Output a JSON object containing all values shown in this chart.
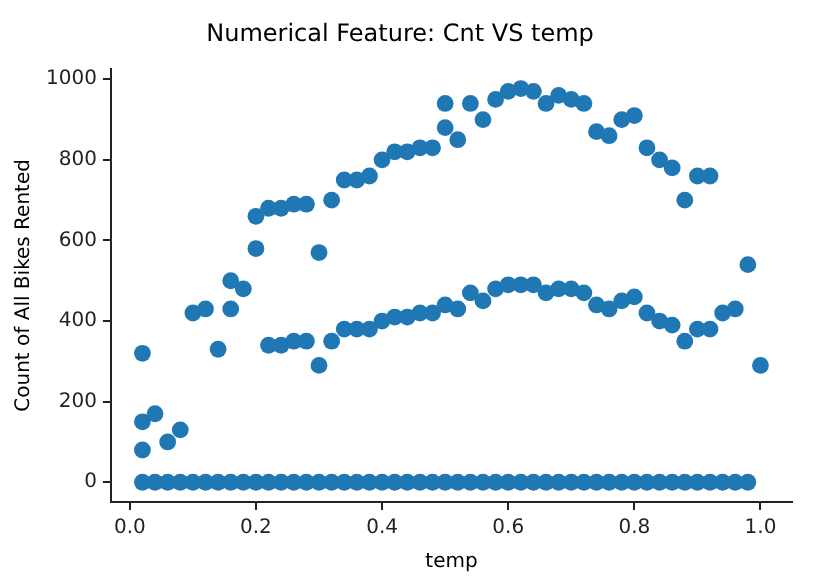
{
  "chart_data": {
    "type": "scatter",
    "title": "Numerical Feature: Cnt VS temp",
    "xlabel": "temp",
    "ylabel": "Count of All Bikes Rented",
    "x": [
      0.02,
      0.02,
      0.02,
      0.02,
      0.04,
      0.04,
      0.06,
      0.06,
      0.08,
      0.08,
      0.1,
      0.1,
      0.12,
      0.12,
      0.14,
      0.14,
      0.16,
      0.16,
      0.16,
      0.18,
      0.18,
      0.2,
      0.2,
      0.2,
      0.22,
      0.22,
      0.22,
      0.24,
      0.24,
      0.24,
      0.26,
      0.26,
      0.26,
      0.28,
      0.28,
      0.28,
      0.3,
      0.3,
      0.3,
      0.32,
      0.32,
      0.32,
      0.34,
      0.34,
      0.34,
      0.36,
      0.36,
      0.36,
      0.38,
      0.38,
      0.38,
      0.4,
      0.4,
      0.4,
      0.42,
      0.42,
      0.42,
      0.44,
      0.44,
      0.44,
      0.46,
      0.46,
      0.46,
      0.48,
      0.48,
      0.48,
      0.5,
      0.5,
      0.5,
      0.5,
      0.52,
      0.52,
      0.52,
      0.54,
      0.54,
      0.54,
      0.56,
      0.56,
      0.56,
      0.58,
      0.58,
      0.58,
      0.6,
      0.6,
      0.6,
      0.62,
      0.62,
      0.62,
      0.64,
      0.64,
      0.64,
      0.66,
      0.66,
      0.66,
      0.68,
      0.68,
      0.68,
      0.7,
      0.7,
      0.7,
      0.72,
      0.72,
      0.72,
      0.74,
      0.74,
      0.74,
      0.76,
      0.76,
      0.76,
      0.78,
      0.78,
      0.78,
      0.8,
      0.8,
      0.8,
      0.82,
      0.82,
      0.82,
      0.84,
      0.84,
      0.84,
      0.86,
      0.86,
      0.86,
      0.88,
      0.88,
      0.88,
      0.9,
      0.9,
      0.9,
      0.92,
      0.92,
      0.92,
      0.94,
      0.94,
      0.96,
      0.96,
      0.98,
      0.98,
      1.0
    ],
    "values": [
      320,
      150,
      80,
      0,
      170,
      0,
      100,
      0,
      130,
      0,
      420,
      0,
      430,
      0,
      330,
      0,
      500,
      430,
      0,
      480,
      0,
      660,
      580,
      0,
      680,
      340,
      0,
      680,
      340,
      0,
      690,
      350,
      0,
      690,
      350,
      0,
      570,
      290,
      0,
      700,
      350,
      0,
      750,
      380,
      0,
      750,
      380,
      0,
      760,
      380,
      0,
      800,
      400,
      0,
      820,
      410,
      0,
      820,
      410,
      0,
      830,
      420,
      0,
      830,
      420,
      0,
      940,
      880,
      440,
      0,
      850,
      430,
      0,
      940,
      470,
      0,
      900,
      450,
      0,
      950,
      480,
      0,
      970,
      490,
      0,
      977,
      490,
      0,
      970,
      490,
      0,
      940,
      470,
      0,
      960,
      480,
      0,
      950,
      480,
      0,
      940,
      470,
      0,
      870,
      440,
      0,
      860,
      430,
      0,
      900,
      450,
      0,
      910,
      460,
      0,
      830,
      420,
      0,
      800,
      400,
      0,
      780,
      390,
      0,
      700,
      350,
      0,
      760,
      380,
      0,
      760,
      380,
      0,
      420,
      0,
      430,
      0,
      540,
      0,
      290
    ],
    "color": "#1f77b4",
    "marker": "circle",
    "xlim": [
      -0.03,
      1.05
    ],
    "ylim": [
      -49,
      1026
    ],
    "xticks": [
      {
        "value": 0,
        "label": "0.0"
      },
      {
        "value": 0.2,
        "label": "0.2"
      },
      {
        "value": 0.4,
        "label": "0.4"
      },
      {
        "value": 0.6,
        "label": "0.6"
      },
      {
        "value": 0.8,
        "label": "0.8"
      },
      {
        "value": 1,
        "label": "1.0"
      }
    ],
    "yticks": [
      0,
      200,
      400,
      600,
      800,
      1000
    ],
    "grid": false,
    "legend": false
  }
}
